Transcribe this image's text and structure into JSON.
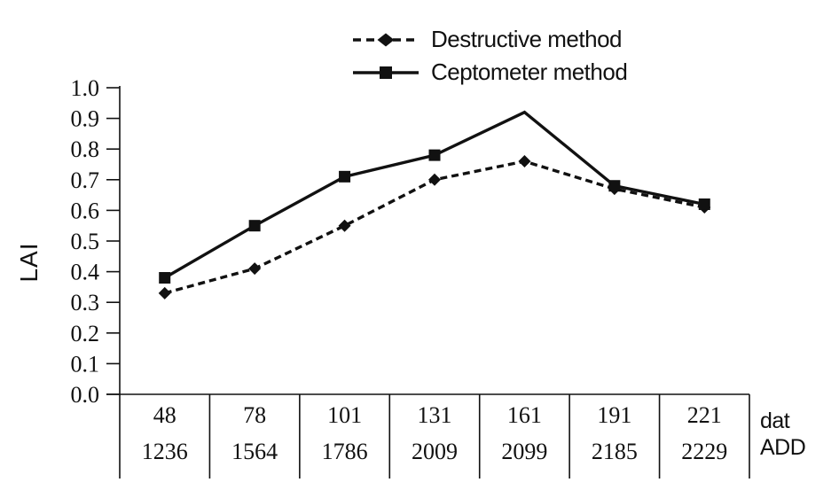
{
  "colors": {
    "ink": "#111111",
    "background": "#ffffff"
  },
  "chart_data": {
    "type": "line",
    "title": "",
    "ylabel": "LAI",
    "ylim": [
      0,
      1
    ],
    "y_tick_step": 0.1,
    "y_tick_labels": [
      "0.0",
      "0.1",
      "0.2",
      "0.3",
      "0.4",
      "0.5",
      "0.6",
      "0.7",
      "0.8",
      "0.9",
      "1.0"
    ],
    "grid": false,
    "legend_position": "top-center",
    "x": {
      "rows": [
        {
          "label": "dat",
          "values": [
            "48",
            "78",
            "101",
            "131",
            "161",
            "191",
            "221"
          ]
        },
        {
          "label": "ADD",
          "values": [
            "1236",
            "1564",
            "1786",
            "2009",
            "2099",
            "2185",
            "2229"
          ]
        }
      ]
    },
    "series": [
      {
        "name": "Destructive method",
        "line_style": "dashed",
        "marker": "diamond",
        "values": [
          0.33,
          0.41,
          0.55,
          0.7,
          0.76,
          0.67,
          0.61
        ]
      },
      {
        "name": "Ceptometer method",
        "line_style": "solid",
        "marker": "square",
        "values": [
          0.38,
          0.55,
          0.71,
          0.78,
          0.92,
          0.68,
          0.62
        ],
        "marker_hidden_at_indices": [
          4
        ]
      }
    ]
  }
}
